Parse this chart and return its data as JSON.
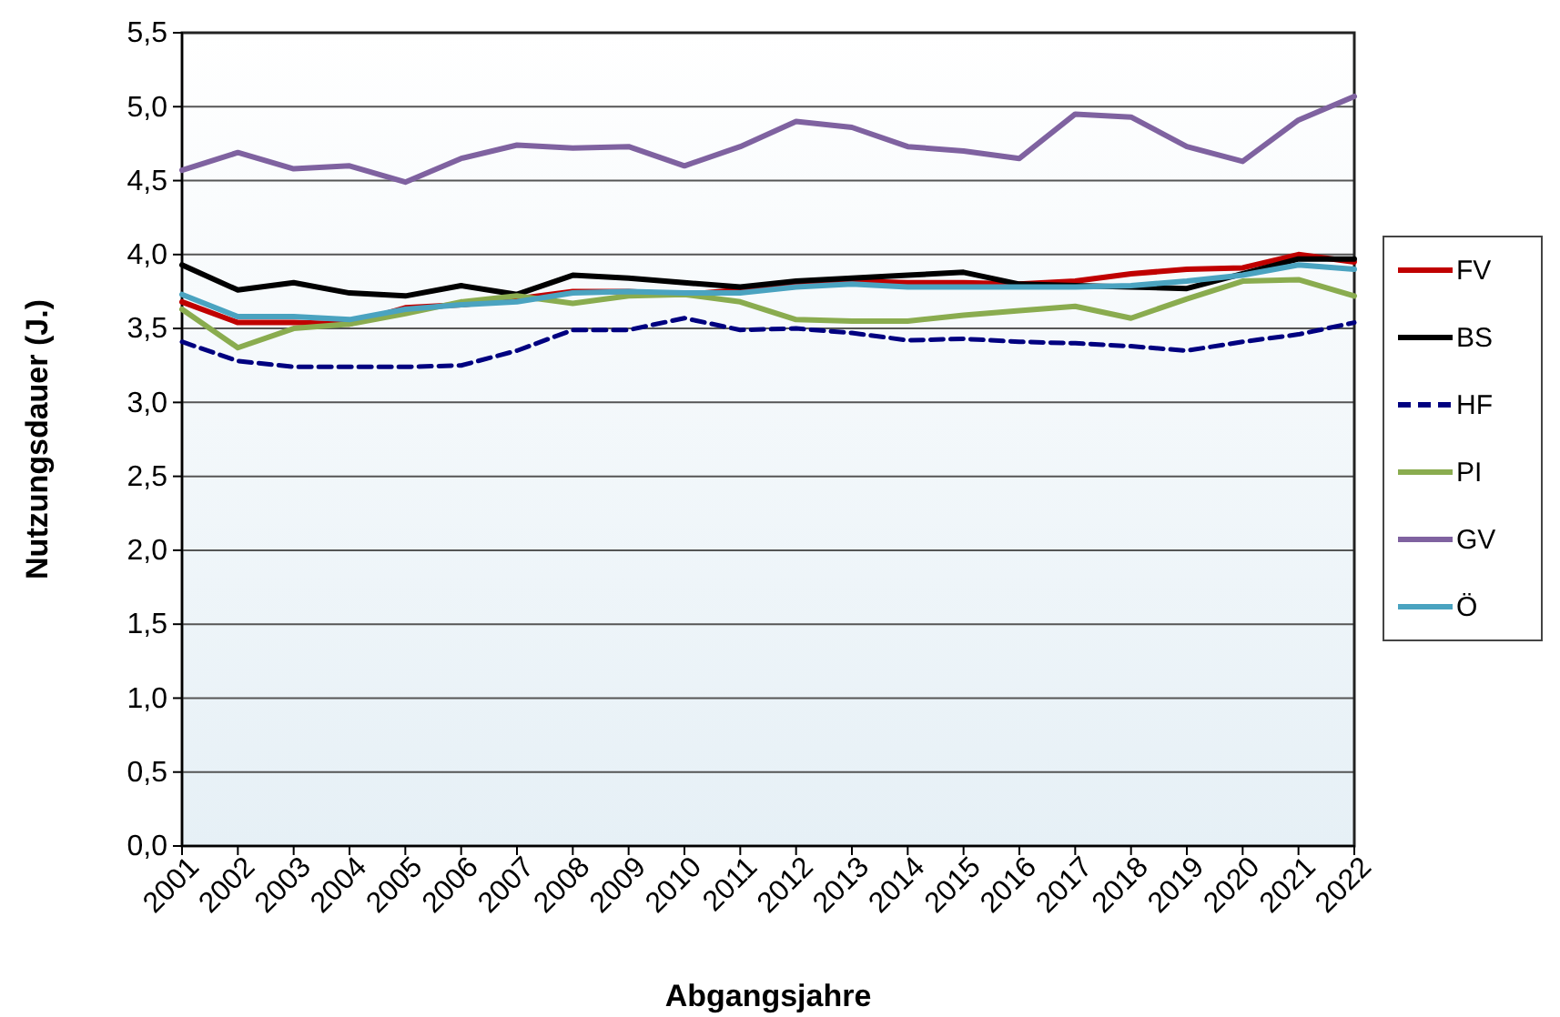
{
  "chart_data": {
    "type": "line",
    "xlabel": "Abgangsjahre",
    "ylabel": "Nutzungsdauer (J.)",
    "categories": [
      "2001",
      "2002",
      "2003",
      "2004",
      "2005",
      "2006",
      "2007",
      "2008",
      "2009",
      "2010",
      "2011",
      "2012",
      "2013",
      "2014",
      "2015",
      "2016",
      "2017",
      "2018",
      "2019",
      "2020",
      "2021",
      "2022"
    ],
    "ylim": [
      0,
      5.5
    ],
    "yticks": [
      {
        "value": 0,
        "label": "0,0"
      },
      {
        "value": 0.5,
        "label": "0,5"
      },
      {
        "value": 1,
        "label": "1,0"
      },
      {
        "value": 1.5,
        "label": "1,5"
      },
      {
        "value": 2,
        "label": "2,0"
      },
      {
        "value": 2.5,
        "label": "2,5"
      },
      {
        "value": 3,
        "label": "3,0"
      },
      {
        "value": 3.5,
        "label": "3,5"
      },
      {
        "value": 4,
        "label": "4,0"
      },
      {
        "value": 4.5,
        "label": "4,5"
      },
      {
        "value": 5,
        "label": "5,0"
      },
      {
        "value": 5.5,
        "label": "5,5"
      }
    ],
    "grid": "y",
    "legend": "right",
    "series": [
      {
        "name": "FV",
        "color": "#c00000",
        "values": [
          3.68,
          3.54,
          3.54,
          3.53,
          3.64,
          3.66,
          3.7,
          3.75,
          3.75,
          3.73,
          3.76,
          3.8,
          3.82,
          3.81,
          3.81,
          3.8,
          3.82,
          3.87,
          3.9,
          3.91,
          4.0,
          3.95
        ]
      },
      {
        "name": "BS",
        "color": "#000000",
        "values": [
          3.93,
          3.76,
          3.81,
          3.74,
          3.72,
          3.79,
          3.73,
          3.86,
          3.84,
          3.81,
          3.78,
          3.82,
          3.84,
          3.86,
          3.88,
          3.8,
          3.79,
          3.78,
          3.77,
          3.87,
          3.97,
          3.97
        ]
      },
      {
        "name": "HF",
        "color": "#000080",
        "line_style": "dashed",
        "values": [
          3.41,
          3.28,
          3.24,
          3.24,
          3.24,
          3.25,
          3.35,
          3.49,
          3.49,
          3.57,
          3.49,
          3.5,
          3.47,
          3.42,
          3.43,
          3.41,
          3.4,
          3.38,
          3.35,
          3.41,
          3.46,
          3.54
        ]
      },
      {
        "name": "PI",
        "color": "#8aac4f",
        "values": [
          3.63,
          3.37,
          3.5,
          3.53,
          3.6,
          3.68,
          3.72,
          3.67,
          3.72,
          3.73,
          3.68,
          3.56,
          3.55,
          3.55,
          3.59,
          3.62,
          3.65,
          3.57,
          3.7,
          3.82,
          3.83,
          3.72
        ]
      },
      {
        "name": "GV",
        "color": "#7f62a0",
        "values": [
          4.57,
          4.69,
          4.58,
          4.6,
          4.49,
          4.65,
          4.74,
          4.72,
          4.73,
          4.6,
          4.73,
          4.9,
          4.86,
          4.73,
          4.7,
          4.65,
          4.95,
          4.93,
          4.73,
          4.63,
          4.91,
          5.07
        ]
      },
      {
        "name": "Ö",
        "color": "#4aa3c0",
        "values": [
          3.73,
          3.58,
          3.58,
          3.56,
          3.63,
          3.66,
          3.68,
          3.74,
          3.75,
          3.74,
          3.74,
          3.78,
          3.8,
          3.78,
          3.78,
          3.78,
          3.78,
          3.79,
          3.82,
          3.86,
          3.93,
          3.9
        ]
      }
    ]
  }
}
